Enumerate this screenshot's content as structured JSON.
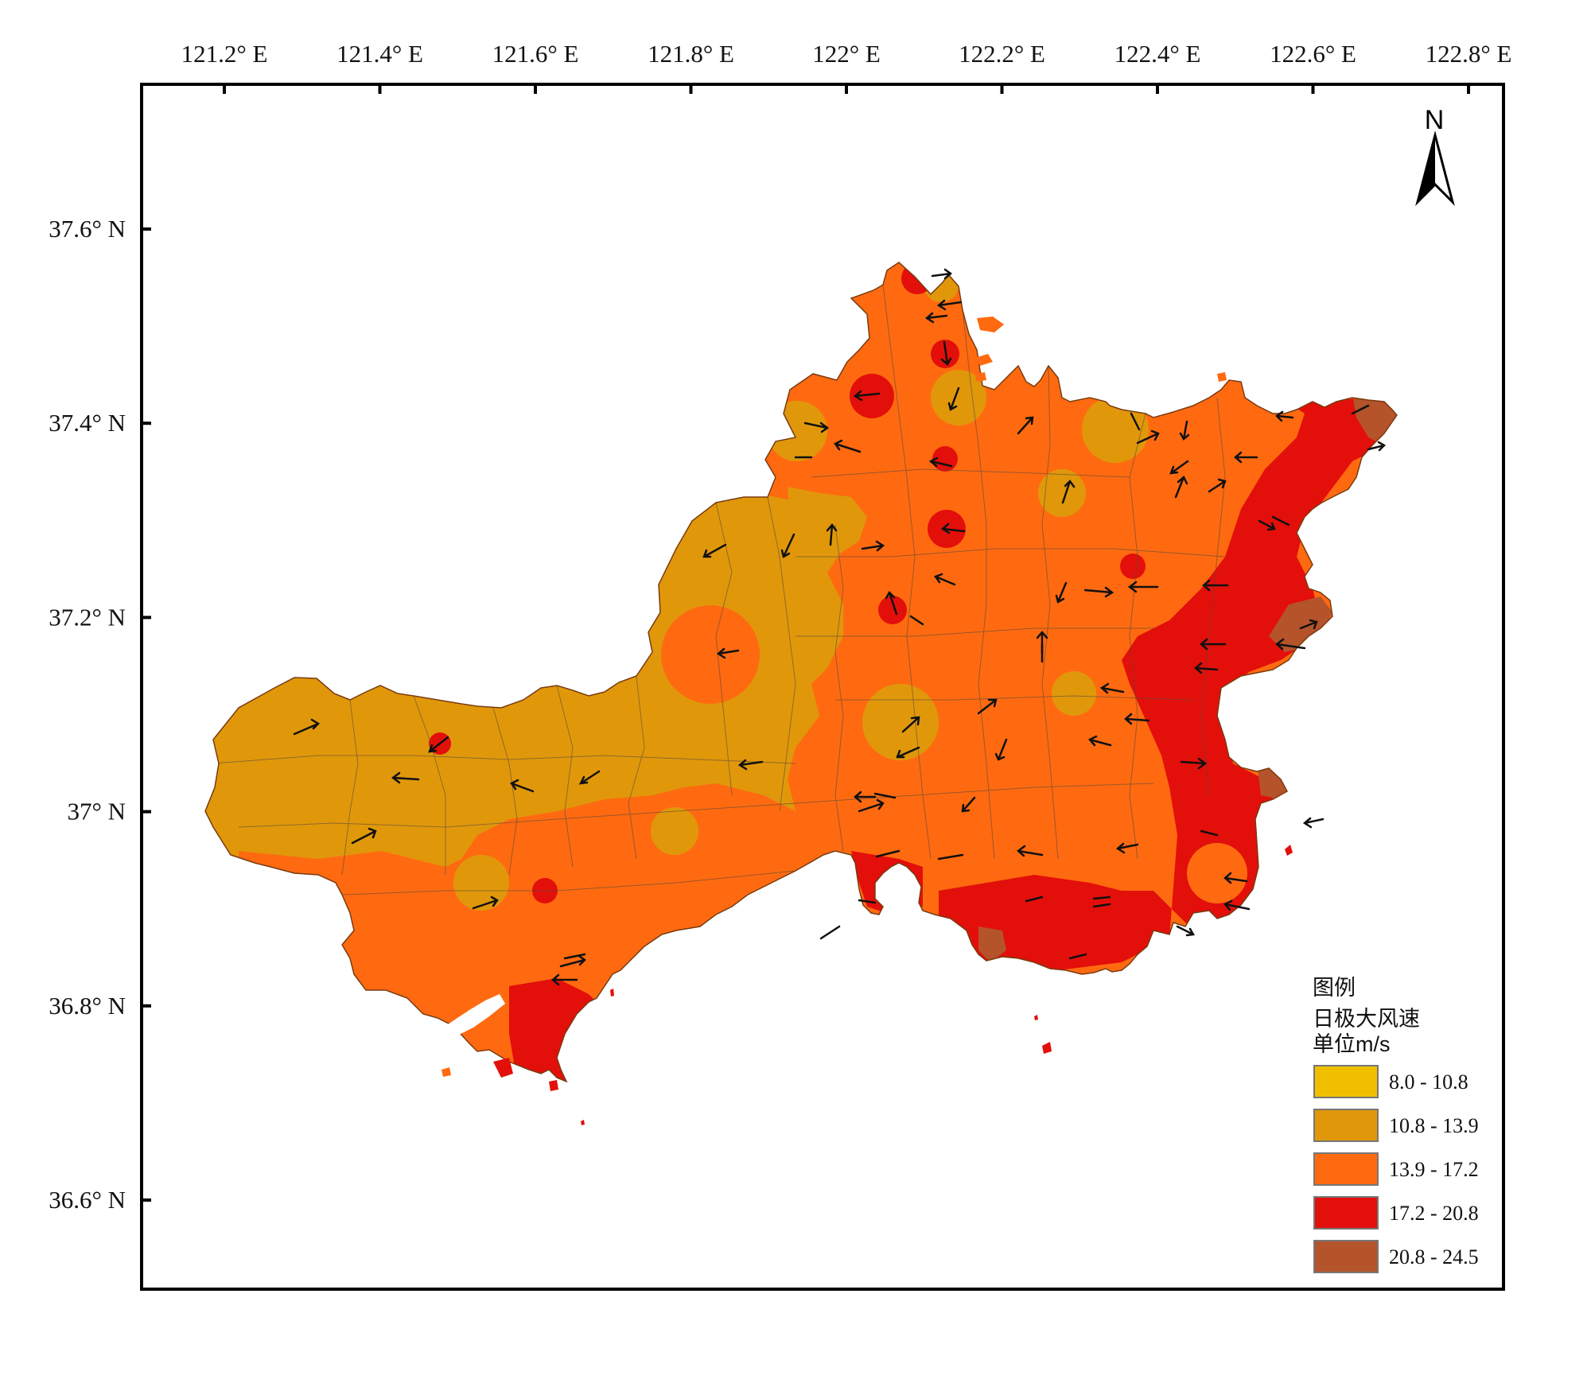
{
  "map": {
    "x_ticks": [
      "121.2° E",
      "121.4° E",
      "121.6° E",
      "121.8° E",
      "122° E",
      "122.2° E",
      "122.4° E",
      "122.6° E",
      "122.8° E"
    ],
    "y_ticks": [
      "37.6° N",
      "37.4° N",
      "37.2° N",
      "37° N",
      "36.8° N",
      "36.6° N"
    ],
    "north_label": "N",
    "legend": {
      "title": "图例",
      "subtitle": "日极大风速",
      "unit": "单位m/s",
      "classes": [
        {
          "label": "8.0 - 10.8",
          "color": "#F0C000"
        },
        {
          "label": "10.8 - 13.9",
          "color": "#E0980A"
        },
        {
          "label": "13.9 - 17.2",
          "color": "#FF6A10"
        },
        {
          "label": "17.2 - 20.8",
          "color": "#E30F0A"
        },
        {
          "label": "20.8 - 24.5",
          "color": "#B5532A"
        }
      ]
    }
  }
}
